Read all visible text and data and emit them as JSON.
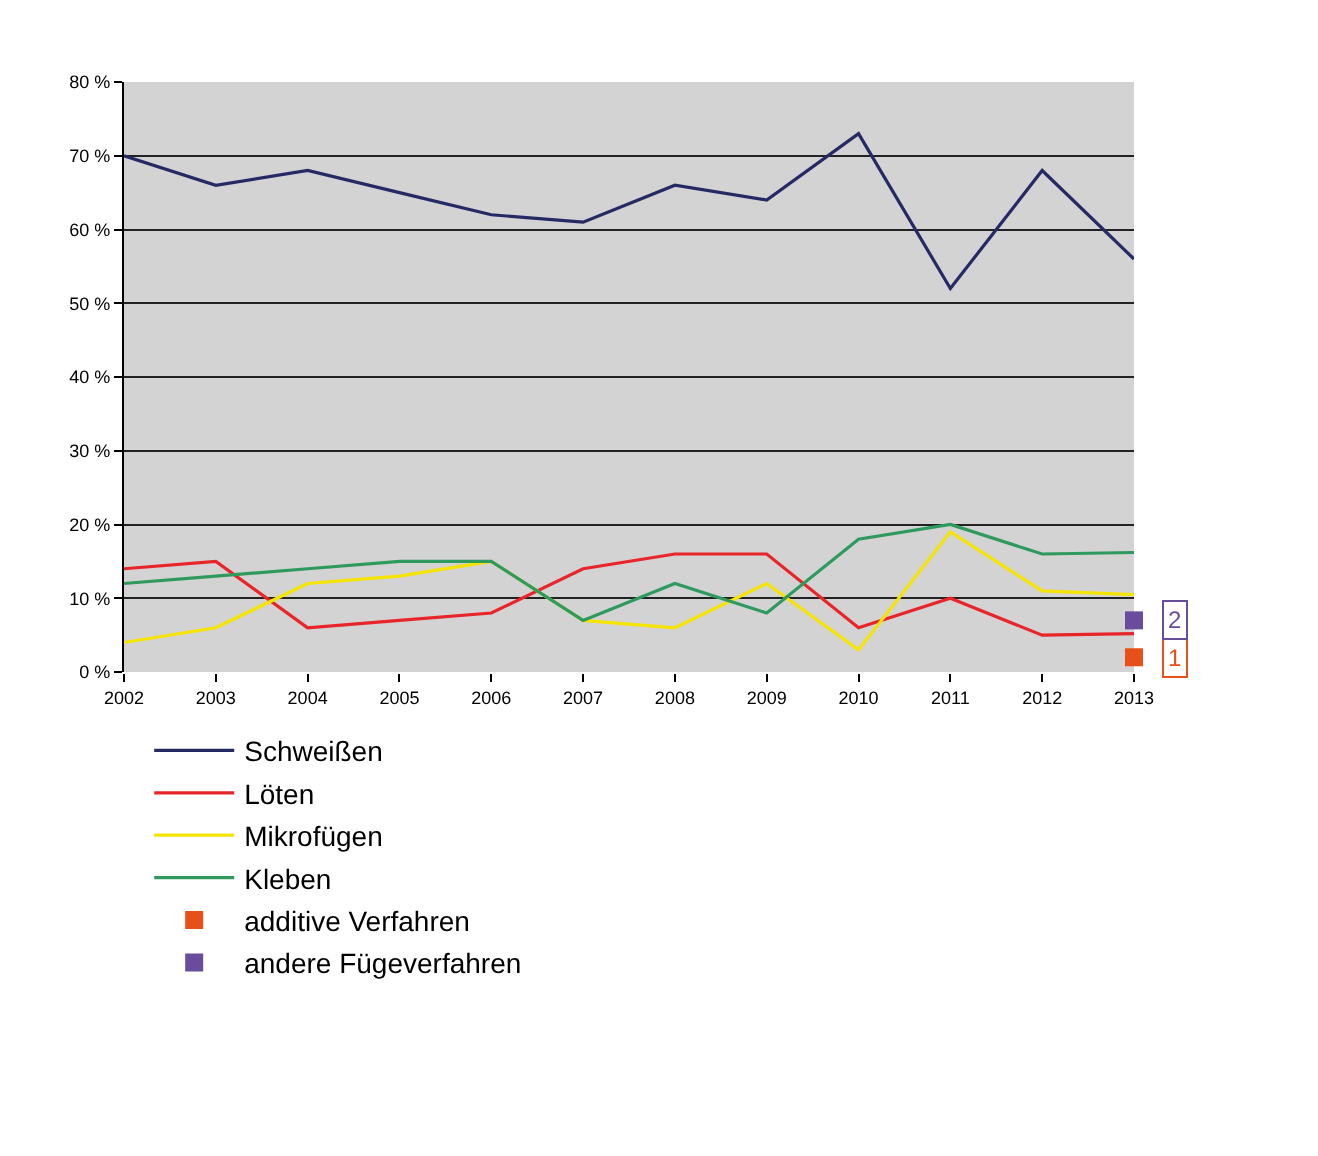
{
  "chart_data": {
    "type": "line",
    "categories": [
      "2002",
      "2003",
      "2004",
      "2005",
      "2006",
      "2007",
      "2008",
      "2009",
      "2010",
      "2011",
      "2012",
      "2013"
    ],
    "series": [
      {
        "name": "Schweißen",
        "color": "#262a64",
        "values": [
          70,
          66,
          68,
          65,
          62,
          61,
          66,
          64,
          73,
          52,
          68,
          56
        ]
      },
      {
        "name": "Löten",
        "color": "#e8262a",
        "values": [
          14,
          15,
          6,
          7,
          8,
          14,
          16,
          16,
          6,
          10,
          5,
          5.2
        ]
      },
      {
        "name": "Mikrofügen",
        "color": "#f5e400",
        "values": [
          4,
          6,
          12,
          13,
          15,
          7,
          6,
          12,
          3,
          19,
          11,
          10.5
        ]
      },
      {
        "name": "Kleben",
        "color": "#2e9a5e",
        "values": [
          12,
          13,
          14,
          15,
          15,
          7,
          12,
          8,
          18,
          20,
          16,
          16.2
        ]
      },
      {
        "name": "additive Verfahren",
        "type": "scatter",
        "marker": "square",
        "color": "#e8501a",
        "values": [
          null,
          null,
          null,
          null,
          null,
          null,
          null,
          null,
          null,
          null,
          null,
          2
        ]
      },
      {
        "name": "andere Fügeverfahren",
        "type": "scatter",
        "marker": "square",
        "color": "#6a4c9c",
        "values": [
          null,
          null,
          null,
          null,
          null,
          null,
          null,
          null,
          null,
          null,
          null,
          7
        ]
      }
    ],
    "annotations": [
      {
        "text": "1",
        "x": "2013",
        "y": 2
      },
      {
        "text": "2",
        "x": "2013",
        "y": 7
      }
    ],
    "ylim": [
      0,
      80
    ],
    "yticks": [
      {
        "value": 0,
        "label": "0 %"
      },
      {
        "value": 10,
        "label": "10 %"
      },
      {
        "value": 20,
        "label": "20 %"
      },
      {
        "value": 30,
        "label": "30 %"
      },
      {
        "value": 40,
        "label": "40 %"
      },
      {
        "value": 50,
        "label": "50 %"
      },
      {
        "value": 60,
        "label": "60 %"
      },
      {
        "value": 70,
        "label": "70 %"
      },
      {
        "value": 80,
        "label": "80 %"
      }
    ],
    "grid": "y",
    "legend": "bottom",
    "line_style": "solid"
  }
}
